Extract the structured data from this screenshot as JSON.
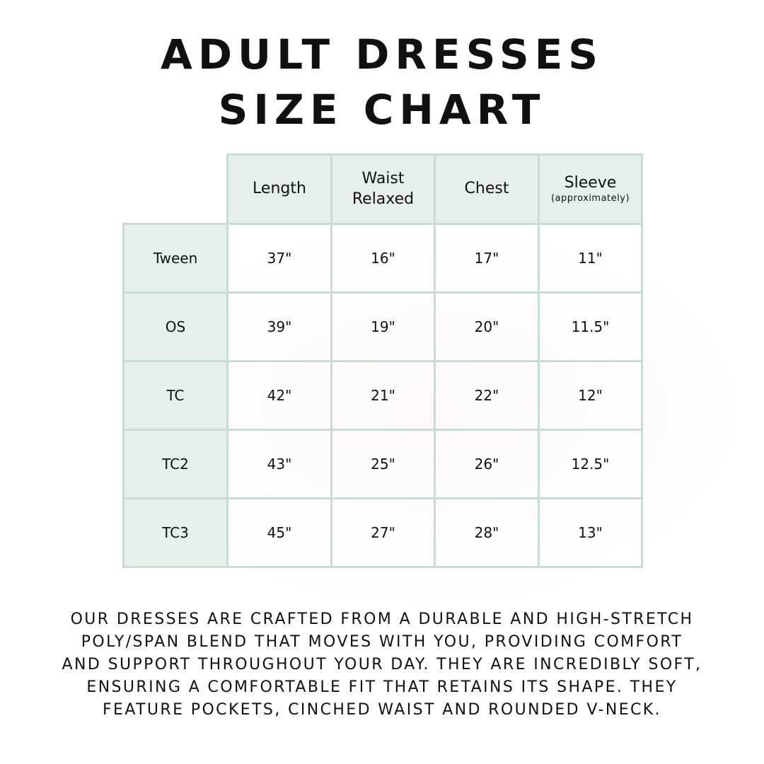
{
  "title": {
    "line1": "ADULT DRESSES",
    "line2": "SIZE CHART"
  },
  "table": {
    "headers": [
      {
        "label": "Length",
        "sub": ""
      },
      {
        "label": "Waist Relaxed",
        "sub": ""
      },
      {
        "label": "Chest",
        "sub": ""
      },
      {
        "label": "Sleeve",
        "sub": "(approximately)"
      }
    ],
    "rows": [
      {
        "size": "Tween",
        "values": [
          "37\"",
          "16\"",
          "17\"",
          "11\""
        ]
      },
      {
        "size": "OS",
        "values": [
          "39\"",
          "19\"",
          "20\"",
          "11.5\""
        ]
      },
      {
        "size": "TC",
        "values": [
          "42\"",
          "21\"",
          "22\"",
          "12\""
        ]
      },
      {
        "size": "TC2",
        "values": [
          "43\"",
          "25\"",
          "26\"",
          "12.5\""
        ]
      },
      {
        "size": "TC3",
        "values": [
          "45\"",
          "27\"",
          "28\"",
          "13\""
        ]
      }
    ]
  },
  "description": [
    "Our dresses are crafted from a durable and high-stretch",
    "poly/span blend that moves with you, providing comfort",
    "and support throughout your day. They are incredibly soft,",
    "ensuring a comfortable fit that retains its shape. They",
    "feature pockets, cinched waist and rounded V-neck."
  ],
  "colors": {
    "table_border": "#c6ddd0",
    "header_fill": "#e6efea"
  }
}
